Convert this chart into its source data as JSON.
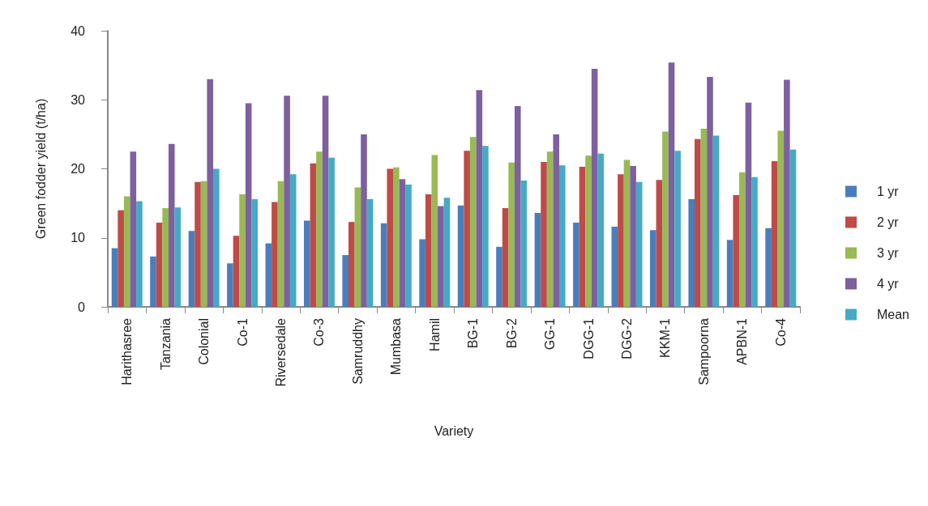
{
  "chart_data": {
    "type": "bar",
    "xlabel": "Variety",
    "ylabel": "Green fodder yield (t/ha)",
    "categories": [
      "Harithasree",
      "Tanzania",
      "Colonial",
      "Co-1",
      "Riversedale",
      "Co-3",
      "Samruddhy",
      "Mumbasa",
      "Hamil",
      "BG-1",
      "BG-2",
      "GG-1",
      "DGG-1",
      "DGG-2",
      "KKM-1",
      "Sampoorna",
      "APBN-1",
      "Co-4"
    ],
    "series": [
      {
        "name": "1 yr",
        "color": "#4a7ebb",
        "values": [
          8.5,
          7.3,
          11,
          6.3,
          9.2,
          12.5,
          7.5,
          12.1,
          9.8,
          14.7,
          8.7,
          13.6,
          12.2,
          11.6,
          11.1,
          15.6,
          9.7,
          11.4
        ]
      },
      {
        "name": "2 yr",
        "color": "#be4b48",
        "values": [
          14,
          12.2,
          18.1,
          10.3,
          15.2,
          20.8,
          12.3,
          20,
          16.3,
          22.6,
          14.3,
          21,
          20.3,
          19.2,
          18.4,
          24.3,
          16.2,
          21.1
        ]
      },
      {
        "name": "3 yr",
        "color": "#98b954",
        "values": [
          16,
          14.3,
          18.2,
          16.3,
          18.2,
          22.5,
          17.3,
          20.2,
          22,
          24.6,
          20.9,
          22.5,
          21.9,
          21.3,
          25.4,
          25.8,
          19.5,
          25.5
        ]
      },
      {
        "name": "4 yr",
        "color": "#7d60a0",
        "values": [
          22.5,
          23.6,
          33,
          29.5,
          30.6,
          30.6,
          25,
          18.5,
          14.6,
          31.4,
          29.1,
          25,
          34.5,
          20.4,
          35.4,
          33.3,
          29.6,
          32.9
        ]
      },
      {
        "name": "Mean",
        "color": "#46aac5",
        "values": [
          15.3,
          14.4,
          20,
          15.6,
          19.2,
          21.6,
          15.6,
          17.7,
          15.8,
          23.3,
          18.3,
          20.5,
          22.2,
          18.1,
          22.6,
          24.8,
          18.8,
          22.8
        ]
      }
    ],
    "ylim": [
      0,
      40
    ],
    "yticks": [
      0,
      10,
      20,
      30,
      40
    ],
    "grid": false,
    "legend": "right"
  }
}
